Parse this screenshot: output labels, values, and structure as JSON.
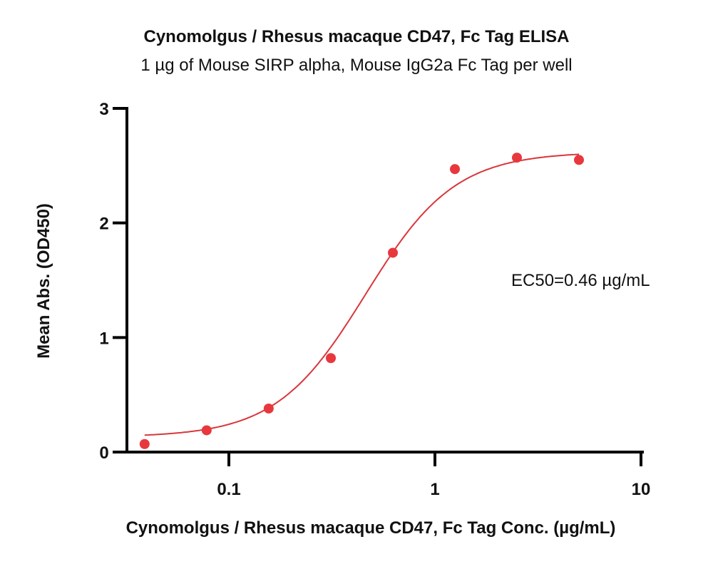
{
  "chart_data": {
    "type": "scatter",
    "title": "Cynomolgus / Rhesus macaque CD47, Fc Tag ELISA",
    "subtitle": "1 µg of Mouse SIRP alpha, Mouse IgG2a Fc Tag per well",
    "xlabel": "Cynomolgus / Rhesus macaque CD47, Fc Tag Conc. (µg/mL)",
    "ylabel": "Mean Abs. (OD450)",
    "xscale": "log",
    "xlim": [
      0.033,
      10
    ],
    "ylim": [
      0,
      3
    ],
    "xticks": [
      0.1,
      1,
      10
    ],
    "xtick_labels": [
      "0.1",
      "1",
      "10"
    ],
    "yticks": [
      0,
      1,
      2,
      3
    ],
    "ytick_labels": [
      "0",
      "1",
      "2",
      "3"
    ],
    "grid": false,
    "legend": null,
    "annotation": "EC50=0.46 µg/mL",
    "series": [
      {
        "name": "Mean Abs.",
        "type": "scatter",
        "color": "#E8383D",
        "x": [
          0.039,
          0.078,
          0.156,
          0.3125,
          0.625,
          1.25,
          2.5,
          5
        ],
        "y": [
          0.07,
          0.19,
          0.38,
          0.82,
          1.74,
          2.47,
          2.57,
          2.55
        ]
      },
      {
        "name": "4PL fit",
        "type": "line",
        "color": "#D9363B",
        "fit": {
          "bottom": 0.13,
          "top": 2.62,
          "ec50": 0.46,
          "hill": 2.0
        },
        "x_range": [
          0.039,
          5
        ]
      }
    ]
  }
}
